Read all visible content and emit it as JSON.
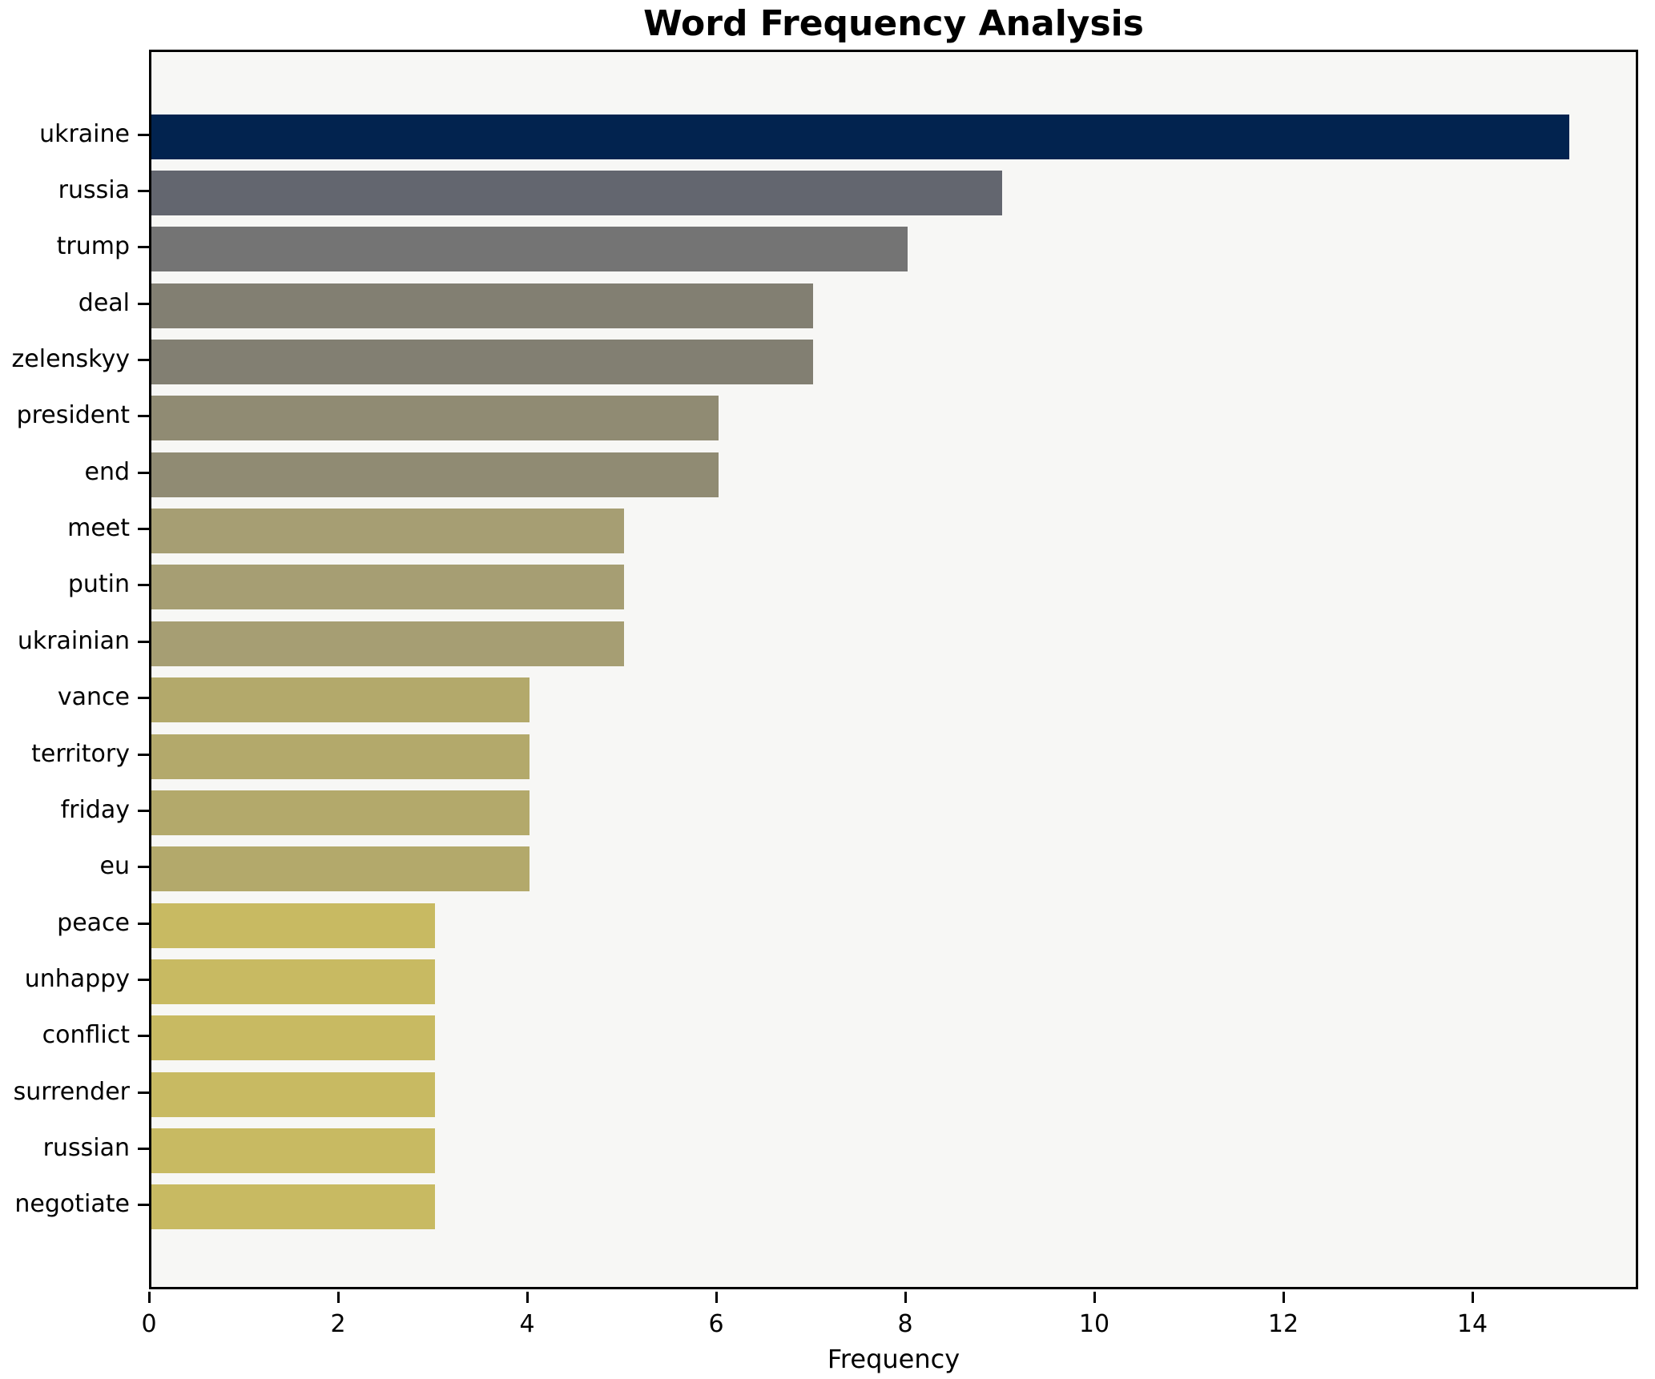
{
  "chart_data": {
    "type": "bar",
    "orientation": "horizontal",
    "title": "Word Frequency Analysis",
    "xlabel": "Frequency",
    "ylabel": "",
    "categories": [
      "ukraine",
      "russia",
      "trump",
      "deal",
      "zelenskyy",
      "president",
      "end",
      "meet",
      "putin",
      "ukrainian",
      "vance",
      "territory",
      "friday",
      "eu",
      "peace",
      "unhappy",
      "conflict",
      "surrender",
      "russian",
      "negotiate"
    ],
    "values": [
      15,
      9,
      8,
      7,
      7,
      6,
      6,
      5,
      5,
      5,
      4,
      4,
      4,
      4,
      3,
      3,
      3,
      3,
      3,
      3
    ],
    "bar_colors": [
      "#02234f",
      "#63666f",
      "#747474",
      "#827f72",
      "#827f72",
      "#908b73",
      "#908b73",
      "#a69e73",
      "#a69e73",
      "#a69e73",
      "#b3a96b",
      "#b3a96b",
      "#b3a96b",
      "#b3a96b",
      "#c8ba62",
      "#c8ba62",
      "#c8ba62",
      "#c8ba62",
      "#c8ba62",
      "#c8ba62"
    ],
    "x_ticks": [
      0,
      2,
      4,
      6,
      8,
      10,
      12,
      14
    ],
    "xlim": [
      0,
      15.75
    ],
    "grid": "off",
    "legend": "none",
    "plot_background": "#f7f7f5",
    "figure_background": "#ffffff",
    "spine_color": "#000000",
    "text_color": "#000000"
  }
}
